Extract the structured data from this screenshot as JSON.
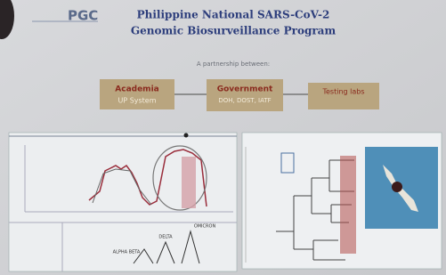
{
  "header": {
    "logo": "PGC",
    "title_line1": "Philippine National SARS-CoV-2",
    "title_line2": "Genomic Biosurveillance Program",
    "subtitle": "A partnership between:"
  },
  "partners": [
    {
      "name": "Academia",
      "detail": "UP System"
    },
    {
      "name": "Government",
      "detail": "DOH, DOST, IATF"
    },
    {
      "name": "Testing labs"
    }
  ],
  "variants": [
    "ALPHA BETA",
    "DELTA",
    "OMICRON"
  ]
}
